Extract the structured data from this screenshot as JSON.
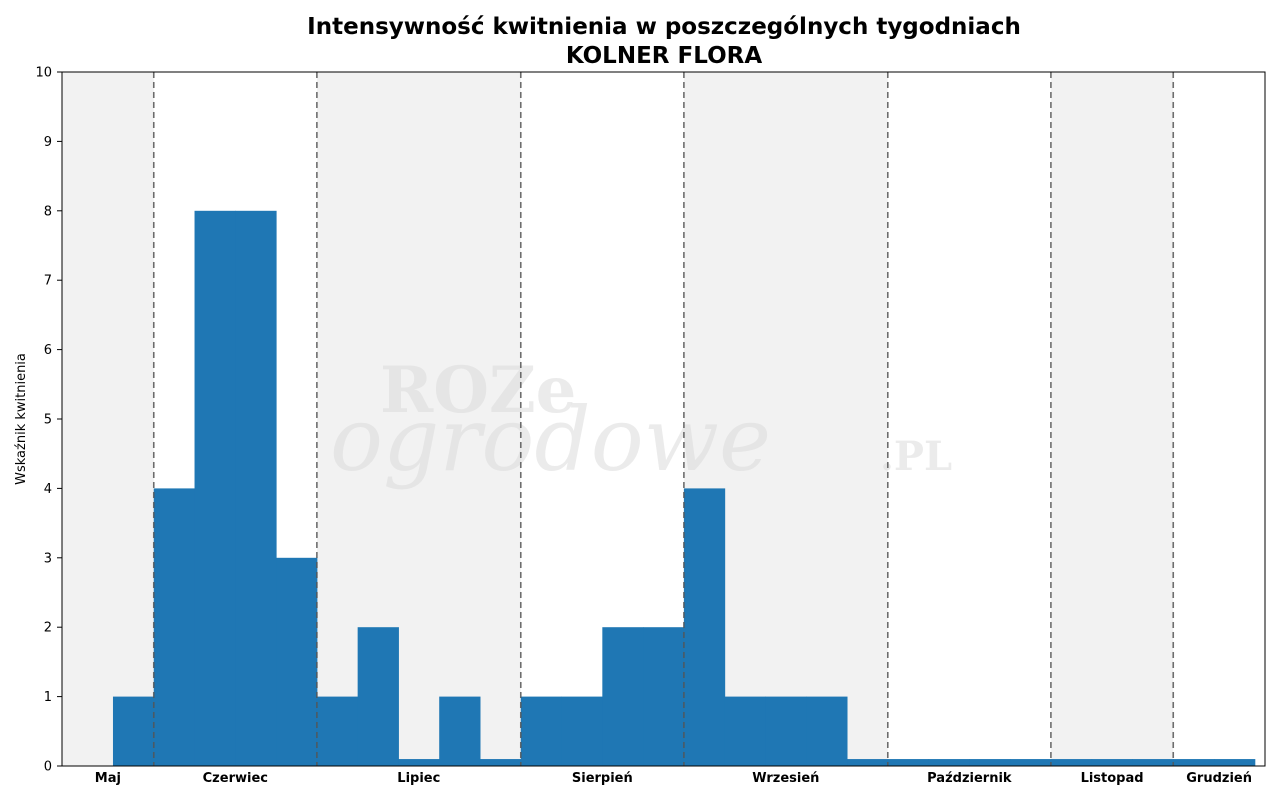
{
  "chart_data": {
    "type": "bar",
    "title": "Intensywność kwitnienia w poszczególnych tygodniach",
    "subtitle": "KOLNER FLORA",
    "ylabel": "Wskaźnik kwitnienia",
    "xlabel": "",
    "ylim": [
      0,
      10
    ],
    "yticks": [
      "0",
      "1",
      "2",
      "3",
      "4",
      "5",
      "6",
      "7",
      "8",
      "9",
      "10"
    ],
    "grid": false,
    "bar_color": "#1f77b4",
    "shade_color": "#f2f2f2",
    "months": [
      {
        "label": "Maj",
        "weeks": 2.25,
        "shaded": true
      },
      {
        "label": "Czerwiec",
        "weeks": 4,
        "shaded": false
      },
      {
        "label": "Lipiec",
        "weeks": 5,
        "shaded": true
      },
      {
        "label": "Sierpień",
        "weeks": 4,
        "shaded": false
      },
      {
        "label": "Wrzesień",
        "weeks": 5,
        "shaded": true
      },
      {
        "label": "Październik",
        "weeks": 4,
        "shaded": false
      },
      {
        "label": "Listopad",
        "weeks": 3,
        "shaded": true
      },
      {
        "label": "Grudzień",
        "weeks": 2.25,
        "shaded": false
      }
    ],
    "week_start_offset": 1.25,
    "values": [
      1,
      4,
      8,
      8,
      3,
      1,
      2,
      0.1,
      1,
      0.1,
      1,
      1,
      2,
      2,
      4,
      1,
      1,
      1,
      0.1,
      0.1,
      0.1,
      0.1,
      0.1,
      0.1,
      0.1,
      0.1,
      0.1,
      0.1
    ]
  },
  "watermark": {
    "line1": "ROZe",
    "line2": "ogrodowe",
    "line3": ".PL"
  }
}
